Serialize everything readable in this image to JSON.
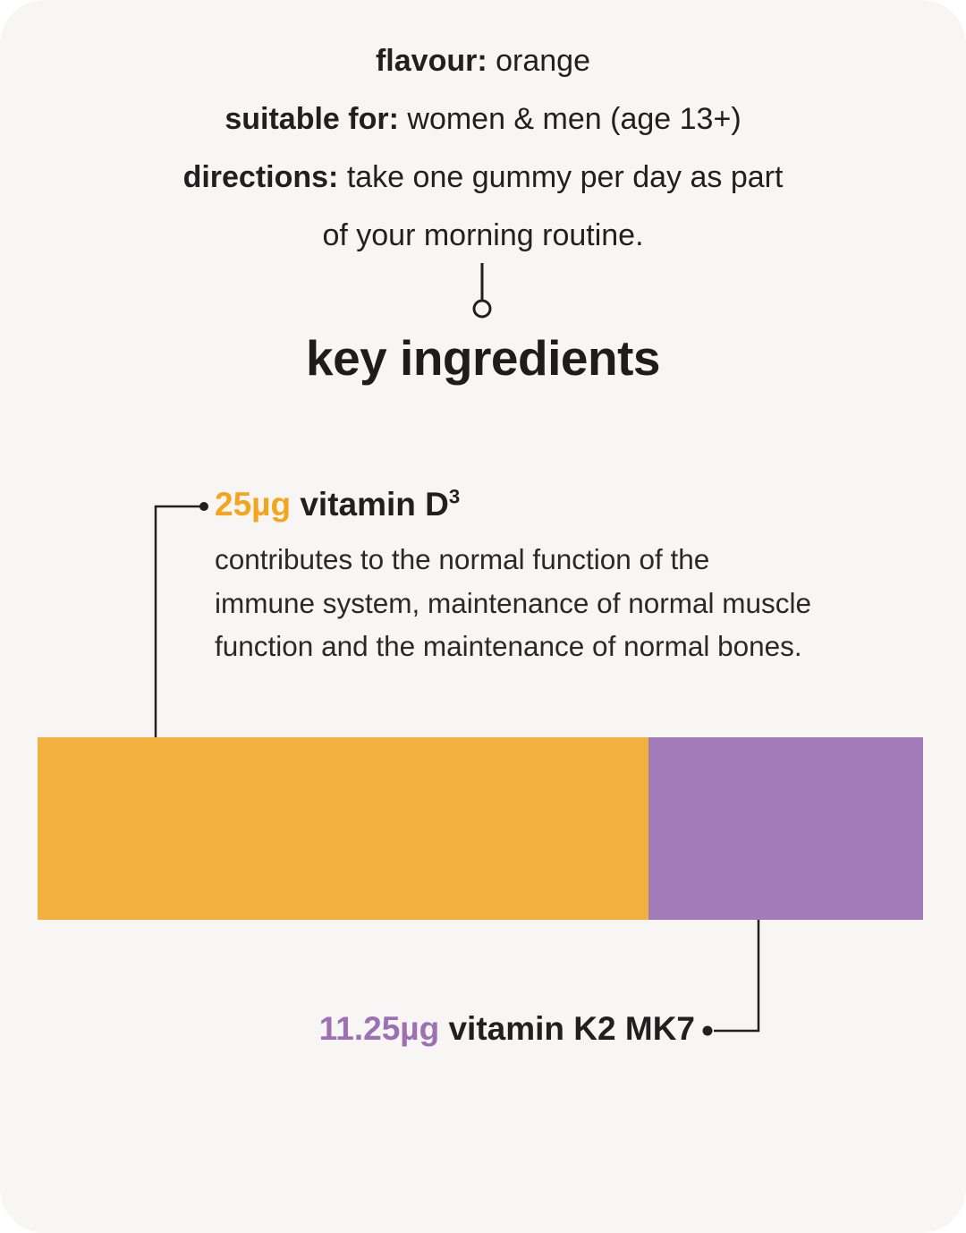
{
  "header": {
    "lines": [
      {
        "label": "flavour:",
        "text": " orange"
      },
      {
        "label": "suitable for:",
        "text": " women & men (age 13+)"
      },
      {
        "label": "directions:",
        "text": " take one gummy per day as part"
      },
      {
        "label": "",
        "text": "of your morning routine."
      }
    ]
  },
  "section_title": "key ingredients",
  "vitamin_d": {
    "amount": "25µg",
    "name": "vitamin D",
    "superscript": "3",
    "amount_color": "#F5A51D",
    "description_lines": [
      "contributes to the normal function of the",
      "immune system, maintenance of normal muscle",
      "function and the maintenance of normal bones."
    ]
  },
  "vitamin_k2": {
    "amount": "11.25µg",
    "name": "vitamin K2 MK7",
    "amount_color": "#9C70B2"
  },
  "chart_data": {
    "type": "bar",
    "orientation": "horizontal-stacked-proportional",
    "title": "key ingredients",
    "segments": [
      {
        "label": "vitamin D3",
        "value_ug": 25,
        "color": "#F2B13E"
      },
      {
        "label": "vitamin K2 MK7",
        "value_ug": 11.25,
        "color": "#A17CB8"
      }
    ],
    "total_ug": 36.25,
    "legend_position": "callout-labels",
    "grid": false
  },
  "colors": {
    "card_background": "#F8F6F4",
    "text": "#231F20",
    "callout_line": "#231F20"
  }
}
